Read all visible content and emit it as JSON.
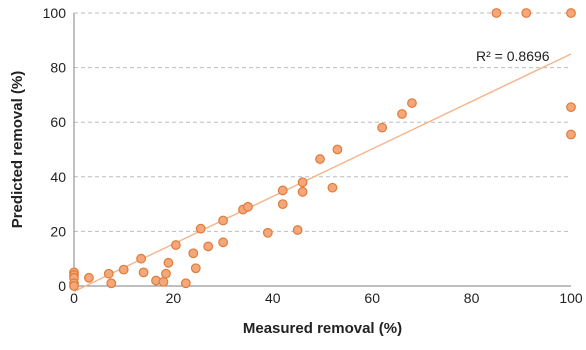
{
  "chart_data": {
    "type": "scatter",
    "title": "",
    "xlabel": "Measured removal (%)",
    "ylabel": "Predicted removal (%)",
    "xlim": [
      0,
      100
    ],
    "ylim": [
      0,
      100
    ],
    "xticks": [
      0,
      20,
      40,
      60,
      80,
      100
    ],
    "yticks": [
      0,
      20,
      40,
      60,
      80,
      100
    ],
    "grid": "horizontal dashed",
    "legend": "none",
    "colors": {
      "marker_fill": "#f4a77a",
      "marker_edge": "#e07b39",
      "trendline": "#f6b48c",
      "grid": "#bdbdbd"
    },
    "annotation": "R² = 0.8696",
    "trendline": {
      "x": [
        0,
        100
      ],
      "y": [
        -2,
        85
      ]
    },
    "points": [
      {
        "x": 0,
        "y": 5
      },
      {
        "x": 0,
        "y": 4
      },
      {
        "x": 0,
        "y": 3
      },
      {
        "x": 0,
        "y": 1
      },
      {
        "x": 0,
        "y": 0
      },
      {
        "x": 3,
        "y": 3
      },
      {
        "x": 7,
        "y": 4.5
      },
      {
        "x": 7.5,
        "y": 1
      },
      {
        "x": 10,
        "y": 6
      },
      {
        "x": 13.5,
        "y": 10
      },
      {
        "x": 14,
        "y": 5
      },
      {
        "x": 16.5,
        "y": 2
      },
      {
        "x": 18,
        "y": 1.5
      },
      {
        "x": 18.5,
        "y": 4.5
      },
      {
        "x": 19,
        "y": 8.5
      },
      {
        "x": 20.5,
        "y": 15
      },
      {
        "x": 22.5,
        "y": 1
      },
      {
        "x": 24,
        "y": 12
      },
      {
        "x": 24.5,
        "y": 6.5
      },
      {
        "x": 25.5,
        "y": 21
      },
      {
        "x": 27,
        "y": 14.5
      },
      {
        "x": 30,
        "y": 16
      },
      {
        "x": 30,
        "y": 24
      },
      {
        "x": 34,
        "y": 28
      },
      {
        "x": 35,
        "y": 29
      },
      {
        "x": 39,
        "y": 19.5
      },
      {
        "x": 42,
        "y": 35
      },
      {
        "x": 42,
        "y": 30
      },
      {
        "x": 45,
        "y": 20.5
      },
      {
        "x": 46,
        "y": 38
      },
      {
        "x": 46,
        "y": 34.5
      },
      {
        "x": 49.5,
        "y": 46.5
      },
      {
        "x": 52,
        "y": 36
      },
      {
        "x": 53,
        "y": 50
      },
      {
        "x": 62,
        "y": 58
      },
      {
        "x": 66,
        "y": 63
      },
      {
        "x": 68,
        "y": 67
      },
      {
        "x": 85,
        "y": 100
      },
      {
        "x": 91,
        "y": 100
      },
      {
        "x": 100,
        "y": 100
      },
      {
        "x": 100,
        "y": 65.5
      },
      {
        "x": 100,
        "y": 55.5
      }
    ]
  }
}
